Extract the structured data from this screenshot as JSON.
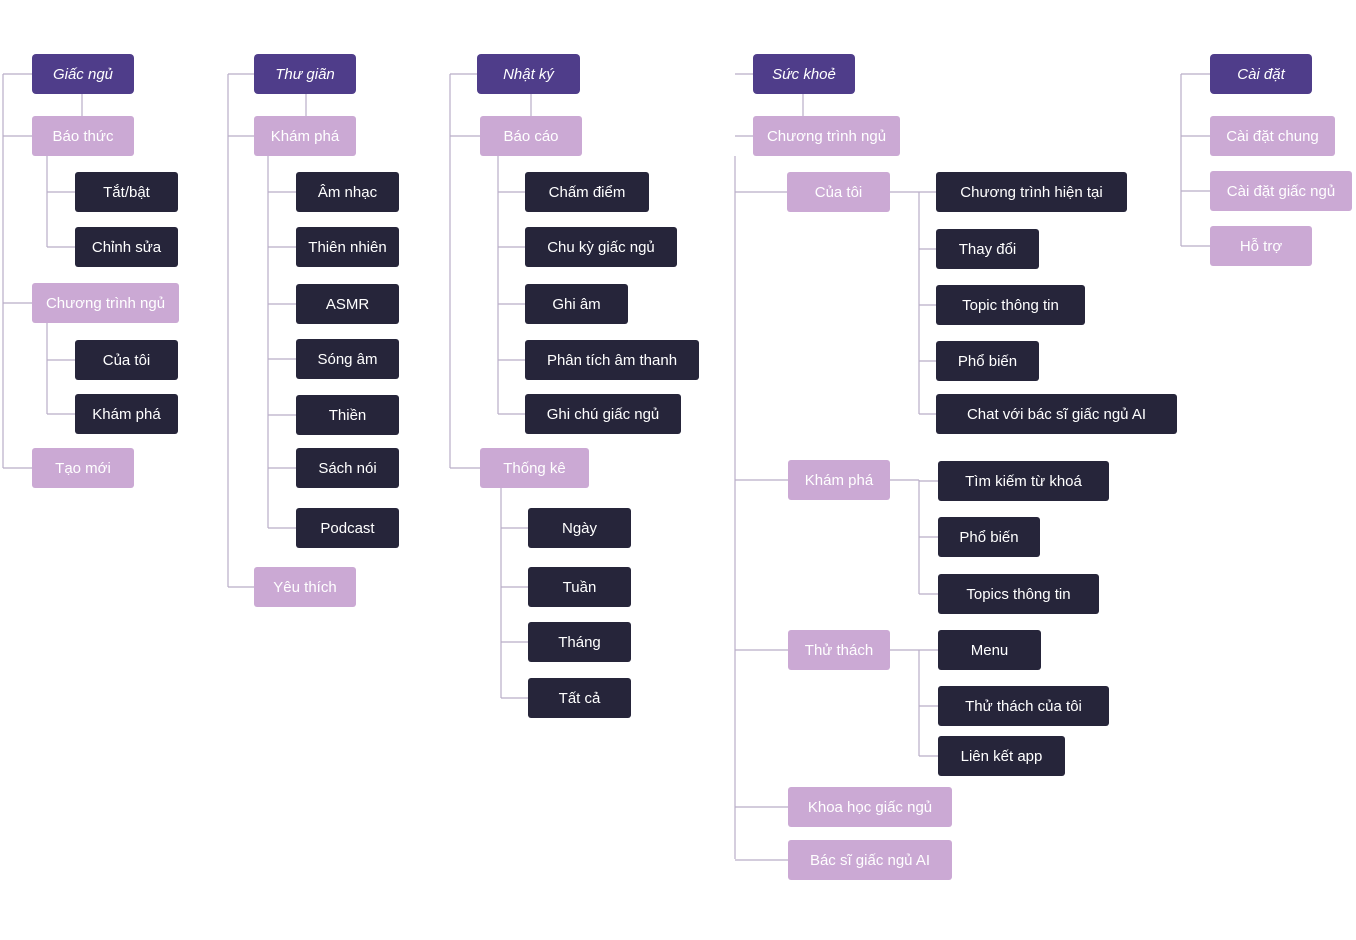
{
  "colors": {
    "root": "#4f3d8a",
    "level1": "#cba9d4",
    "level2": "#26253a",
    "level3": "#ffd6c2",
    "connector": "#b9aec7"
  },
  "columns": [
    {
      "label": "Giấc ngủ",
      "children": [
        {
          "label": "Báo thức",
          "children": [
            {
              "label": "Tắt/bật"
            },
            {
              "label": "Chỉnh sửa"
            }
          ]
        },
        {
          "label": "Chương trình ngủ",
          "children": [
            {
              "label": "Của tôi"
            },
            {
              "label": "Khám phá"
            }
          ]
        },
        {
          "label": "Tạo mới"
        }
      ]
    },
    {
      "label": "Thư giãn",
      "children": [
        {
          "label": "Khám phá",
          "children": [
            {
              "label": "Âm nhạc"
            },
            {
              "label": "Thiên nhiên"
            },
            {
              "label": "ASMR"
            },
            {
              "label": "Sóng âm"
            },
            {
              "label": "Thiền"
            },
            {
              "label": "Sách nói"
            },
            {
              "label": "Podcast"
            }
          ]
        },
        {
          "label": "Yêu thích"
        }
      ]
    },
    {
      "label": "Nhật ký",
      "children": [
        {
          "label": "Báo cáo",
          "children": [
            {
              "label": "Chấm điểm"
            },
            {
              "label": "Chu kỳ giấc ngủ"
            },
            {
              "label": "Ghi âm"
            },
            {
              "label": "Phân tích âm thanh"
            },
            {
              "label": "Ghi chú giấc ngủ"
            }
          ]
        },
        {
          "label": "Thống kê",
          "children": [
            {
              "label": "Ngày"
            },
            {
              "label": "Tuần"
            },
            {
              "label": "Tháng"
            },
            {
              "label": "Tất cả"
            }
          ]
        }
      ]
    },
    {
      "label": "Sức khoẻ",
      "children": [
        {
          "label": "Chương trình ngủ"
        },
        {
          "label": "Của tôi",
          "children": [
            {
              "label": "Chương trình hiện tại"
            },
            {
              "label": "Thay đổi"
            },
            {
              "label": "Topic thông tin"
            },
            {
              "label": "Phổ biến"
            },
            {
              "label": "Chat với bác sĩ giấc ngủ AI"
            }
          ]
        },
        {
          "label": "Khám phá",
          "children": [
            {
              "label": "Tìm kiếm từ khoá"
            },
            {
              "label": "Phổ biến"
            },
            {
              "label": "Topics thông tin"
            }
          ]
        },
        {
          "label": "Thử thách",
          "children": [
            {
              "label": "Menu"
            },
            {
              "label": "Thử thách của tôi"
            },
            {
              "label": "Liên kết app"
            }
          ]
        },
        {
          "label": "Khoa học giấc ngủ"
        },
        {
          "label": "Bác sĩ giấc ngủ AI"
        }
      ]
    },
    {
      "label": "Cài đặt",
      "children": [
        {
          "label": "Cài đặt chung"
        },
        {
          "label": "Cài đặt giấc ngủ"
        },
        {
          "label": "Hỗ trợ"
        }
      ]
    }
  ]
}
